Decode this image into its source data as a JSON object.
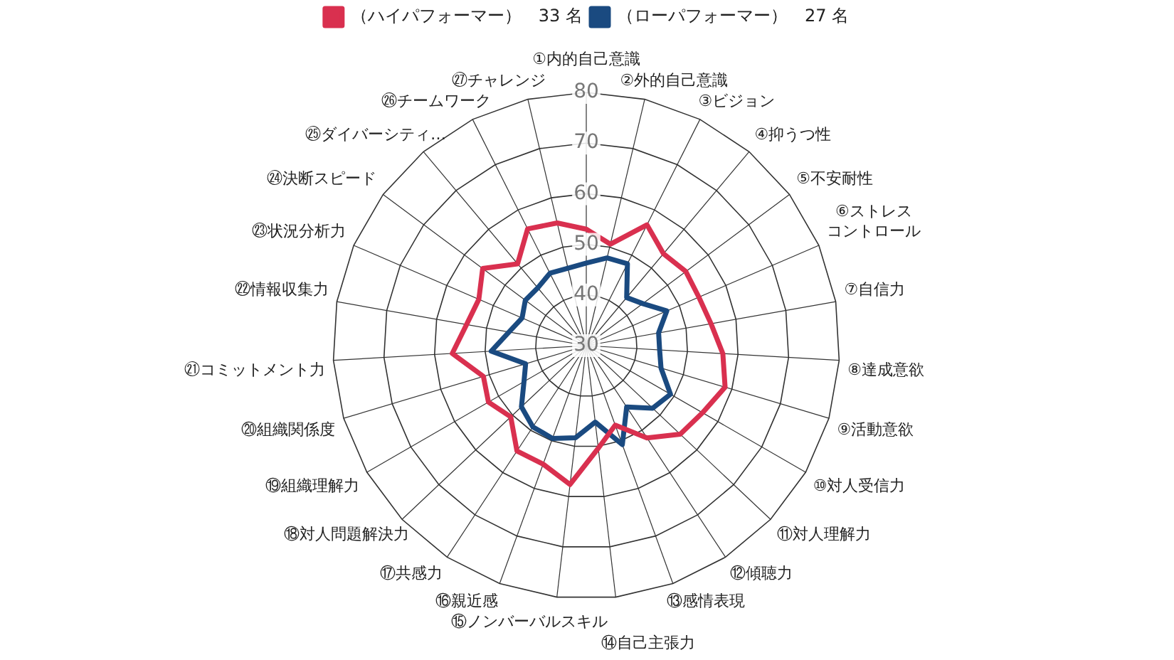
{
  "chart_data": {
    "type": "radar",
    "categories": [
      "①内的自己意識",
      "②外的自己意識",
      "③ビジョン",
      "④抑うつ性",
      "⑤不安耐性",
      "⑥ストレスコントロール",
      "⑦自信力",
      "⑧達成意欲",
      "⑨活動意欲",
      "⑩対人受信力",
      "⑪対人理解力",
      "⑫傾聴力",
      "⑬感情表現",
      "⑭自己主張力",
      "⑮ノンバーバルスキル",
      "⑯親近感",
      "⑰共感力",
      "⑱対人問題解決力",
      "⑲組織理解力",
      "⑳組織関係度",
      "㉑コミットメント力",
      "㉒情報収集力",
      "㉓状況分析力",
      "㉔決断スピード",
      "㉕ダイバーシティ…",
      "㉖チームワーク",
      "㉗チャレンジ"
    ],
    "series": [
      {
        "name": "（ハイパフォーマー）　33 名",
        "color": "#d9304f",
        "values": [
          53,
          50.6,
          56.7,
          53.7,
          54.5,
          54.2,
          55,
          57,
          58.6,
          56.5,
          55.5,
          51.8,
          46.7,
          50.4,
          57.6,
          54.9,
          54.9,
          50.5,
          52.3,
          51.2,
          56.5,
          54,
          53.1,
          55.5,
          51.1,
          55.8,
          54.9
        ]
      },
      {
        "name": "（ローパフォーマー）　27 名",
        "color": "#1a4a80",
        "values": [
          46.3,
          47.8,
          48.1,
          42.4,
          43.9,
          47.3,
          44.5,
          44.5,
          45.4,
          49.2,
          48,
          44.5,
          50.8,
          45.2,
          48.3,
          49.5,
          49.2,
          47.6,
          44.2,
          42.5,
          48.8,
          45.5,
          43.8,
          45,
          44.9,
          46,
          45.7
        ]
      }
    ],
    "ylim": [
      30,
      80
    ],
    "yticks": [
      30,
      40,
      50,
      60,
      70,
      80
    ],
    "grid": true,
    "legend": "top",
    "marker": "none"
  }
}
